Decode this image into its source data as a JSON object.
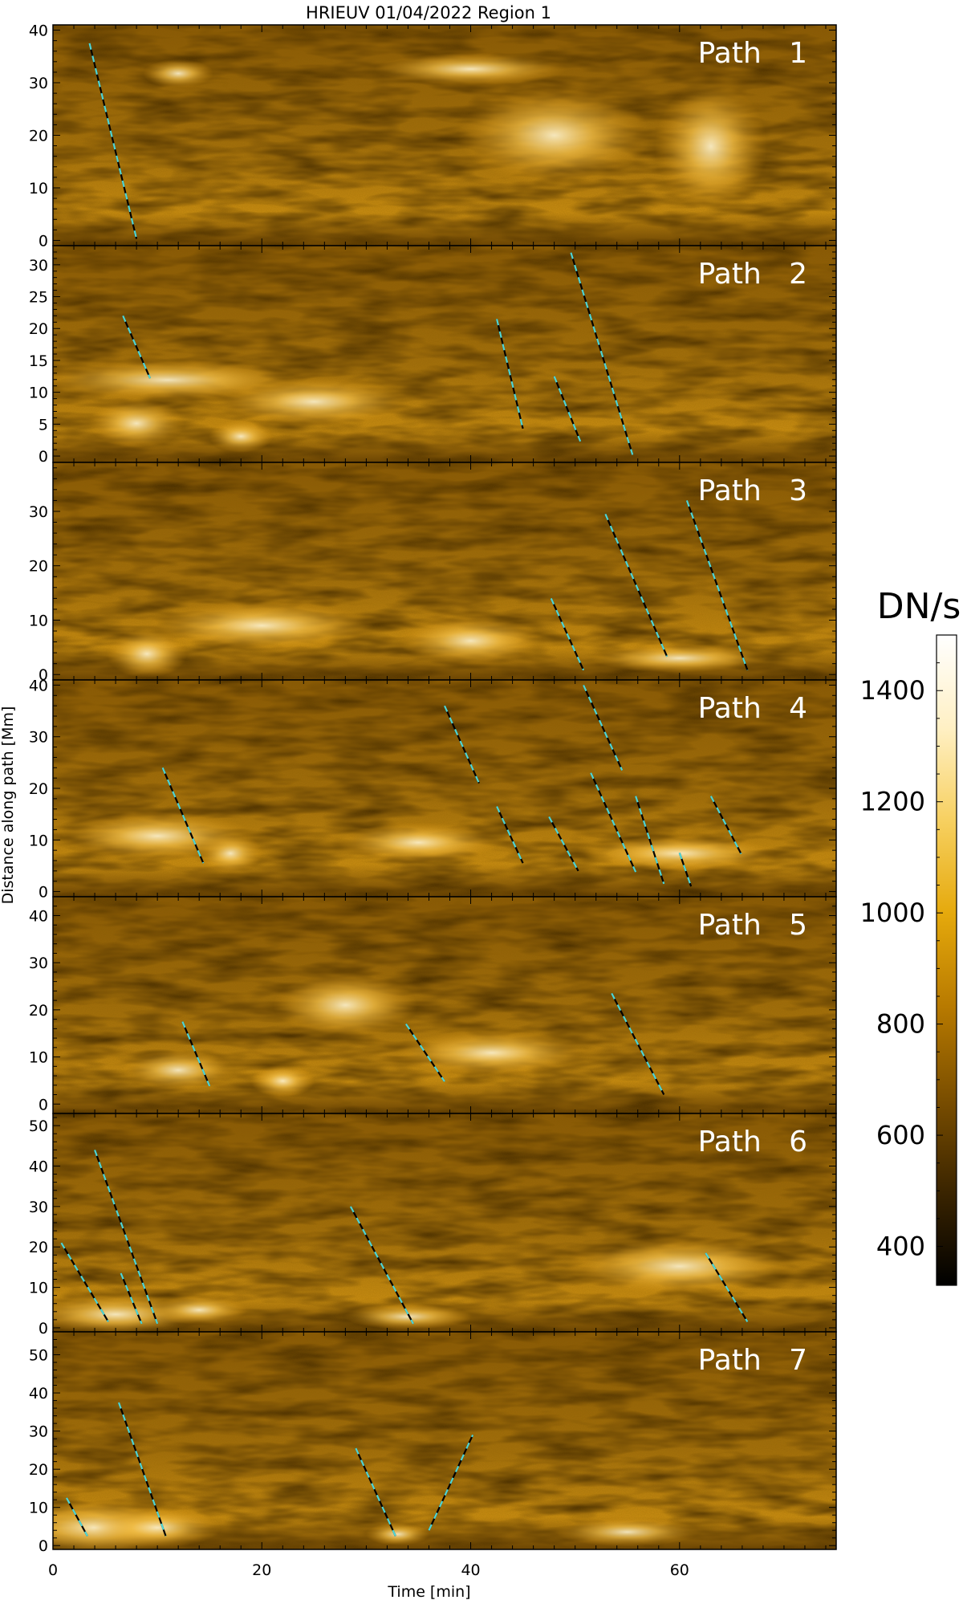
{
  "chart_data": {
    "type": "heatmap",
    "title": "HRIEUV 01/04/2022   Region 1",
    "xlabel": "Time [min]",
    "ylabel": "Distance along path [Mm]",
    "xlim": [
      0,
      75
    ],
    "x_ticks": [
      0,
      20,
      40,
      60
    ],
    "colorbar": {
      "label": "DN/s",
      "range": [
        330,
        1500
      ],
      "ticks": [
        400,
        600,
        800,
        1000,
        1200,
        1400
      ],
      "colormap": [
        "#000000",
        "#3a2400",
        "#7a4e00",
        "#b87a00",
        "#e5a90c",
        "#f7d060",
        "#fff0c4",
        "#ffffff"
      ]
    },
    "panels": [
      {
        "label": "Path   1",
        "ylim": [
          -1,
          41
        ],
        "y_ticks": [
          0,
          10,
          20,
          30,
          40
        ],
        "tracks": [
          [
            3.5,
            37.5,
            8.0,
            0.3
          ]
        ]
      },
      {
        "label": "Path   2",
        "ylim": [
          -1,
          33
        ],
        "y_ticks": [
          0,
          5,
          10,
          15,
          20,
          25,
          30
        ],
        "tracks": [
          [
            6.7,
            22.0,
            9.3,
            12.2
          ],
          [
            42.5,
            21.5,
            45.0,
            4.3
          ],
          [
            48.0,
            12.5,
            50.5,
            2.3
          ],
          [
            49.6,
            31.9,
            55.5,
            0.2
          ]
        ]
      },
      {
        "label": "Path   3",
        "ylim": [
          -1,
          39
        ],
        "y_ticks": [
          0,
          10,
          20,
          30
        ],
        "tracks": [
          [
            47.7,
            14.0,
            50.8,
            0.8
          ],
          [
            52.9,
            29.5,
            58.8,
            3.3
          ],
          [
            60.7,
            32.0,
            66.5,
            0.8
          ]
        ]
      },
      {
        "label": "Path   4",
        "ylim": [
          -1,
          41
        ],
        "y_ticks": [
          0,
          10,
          20,
          30,
          40
        ],
        "tracks": [
          [
            10.5,
            24.0,
            14.4,
            5.5
          ],
          [
            37.5,
            36.0,
            40.8,
            21.0
          ],
          [
            42.5,
            16.5,
            45.0,
            5.5
          ],
          [
            47.5,
            14.5,
            50.3,
            4.0
          ],
          [
            50.8,
            40.0,
            54.5,
            23.5
          ],
          [
            51.5,
            23.0,
            55.8,
            3.8
          ],
          [
            55.8,
            18.5,
            58.5,
            1.5
          ],
          [
            60.0,
            7.5,
            61.1,
            1.0
          ],
          [
            63.0,
            18.5,
            65.9,
            7.3
          ]
        ]
      },
      {
        "label": "Path   5",
        "ylim": [
          -2,
          44
        ],
        "y_ticks": [
          0,
          10,
          20,
          30,
          40
        ],
        "tracks": [
          [
            12.4,
            17.5,
            15.0,
            3.8
          ],
          [
            33.8,
            17.0,
            37.5,
            4.8
          ],
          [
            53.5,
            23.5,
            58.5,
            2.0
          ]
        ]
      },
      {
        "label": "Path   6",
        "ylim": [
          -1,
          53
        ],
        "y_ticks": [
          0,
          10,
          20,
          30,
          40,
          50
        ],
        "tracks": [
          [
            0.8,
            21.0,
            5.3,
            1.5
          ],
          [
            4.0,
            44.0,
            10.0,
            1.0
          ],
          [
            6.5,
            13.5,
            8.5,
            1.0
          ],
          [
            28.5,
            30.0,
            34.5,
            1.0
          ],
          [
            62.5,
            18.5,
            66.5,
            1.5
          ]
        ]
      },
      {
        "label": "Path   7",
        "ylim": [
          -1,
          56
        ],
        "y_ticks": [
          0,
          10,
          20,
          30,
          40,
          50
        ],
        "tracks": [
          [
            1.3,
            12.5,
            3.3,
            2.5
          ],
          [
            6.3,
            37.5,
            10.8,
            2.5
          ],
          [
            29.0,
            25.5,
            32.8,
            2.5
          ],
          [
            36.0,
            4.0,
            40.2,
            29.0
          ]
        ]
      }
    ]
  }
}
